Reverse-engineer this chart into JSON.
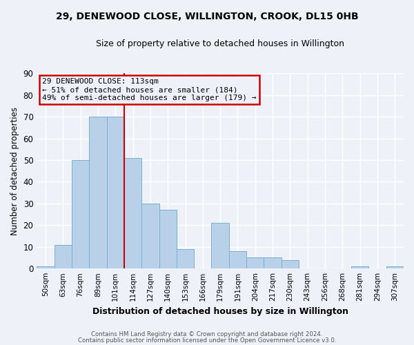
{
  "title": "29, DENEWOOD CLOSE, WILLINGTON, CROOK, DL15 0HB",
  "subtitle": "Size of property relative to detached houses in Willington",
  "xlabel": "Distribution of detached houses by size in Willington",
  "ylabel": "Number of detached properties",
  "bar_labels": [
    "50sqm",
    "63sqm",
    "76sqm",
    "89sqm",
    "101sqm",
    "114sqm",
    "127sqm",
    "140sqm",
    "153sqm",
    "166sqm",
    "179sqm",
    "191sqm",
    "204sqm",
    "217sqm",
    "230sqm",
    "243sqm",
    "256sqm",
    "268sqm",
    "281sqm",
    "294sqm",
    "307sqm"
  ],
  "bar_heights": [
    1,
    11,
    50,
    70,
    70,
    51,
    30,
    27,
    9,
    0,
    21,
    8,
    5,
    5,
    4,
    0,
    0,
    0,
    1,
    0,
    1
  ],
  "bar_color": "#b8d0e8",
  "bar_edge_color": "#7aafd4",
  "vline_color": "#cc0000",
  "ylim": [
    0,
    90
  ],
  "yticks": [
    0,
    10,
    20,
    30,
    40,
    50,
    60,
    70,
    80,
    90
  ],
  "annotation_title": "29 DENEWOOD CLOSE: 113sqm",
  "annotation_line1": "← 51% of detached houses are smaller (184)",
  "annotation_line2": "49% of semi-detached houses are larger (179) →",
  "annotation_box_color": "#cc0000",
  "footer_line1": "Contains HM Land Registry data © Crown copyright and database right 2024.",
  "footer_line2": "Contains public sector information licensed under the Open Government Licence v3.0.",
  "bg_color": "#eef2f8",
  "grid_color": "#ffffff"
}
